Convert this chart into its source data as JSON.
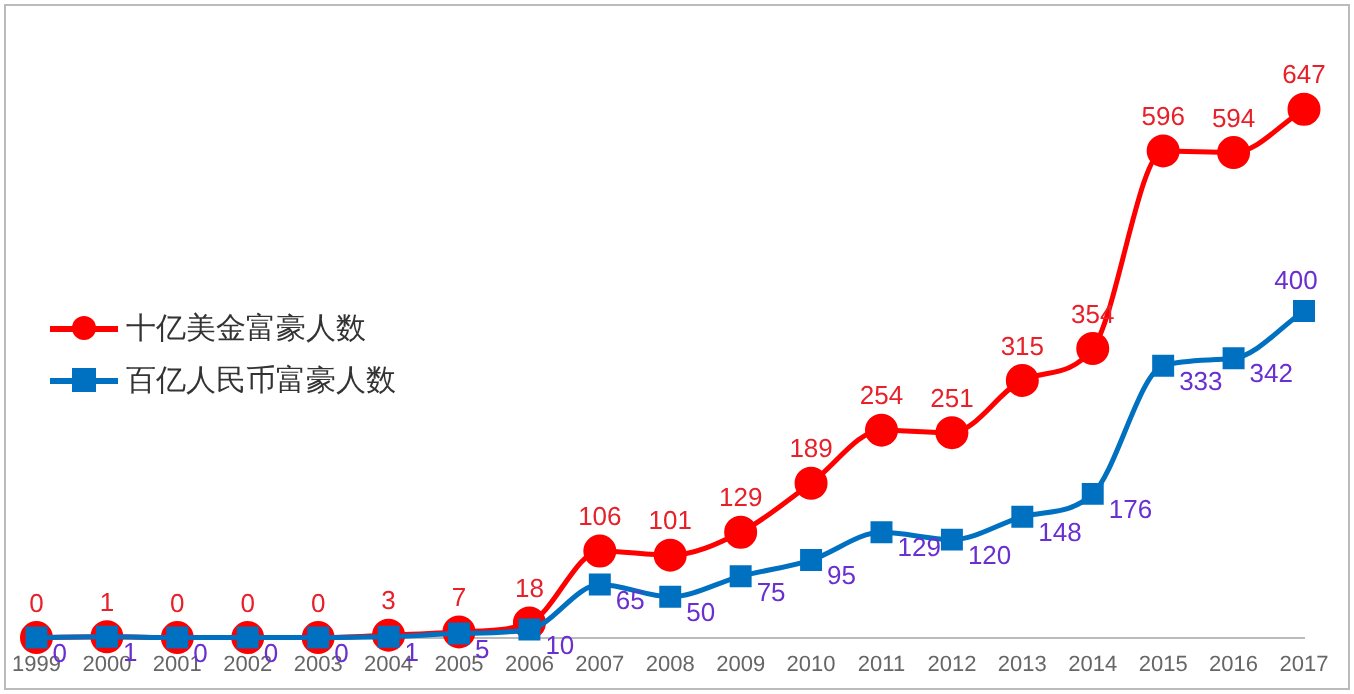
{
  "chart_data": {
    "type": "line",
    "categories": [
      "1999",
      "2000",
      "2001",
      "2002",
      "2003",
      "2004",
      "2005",
      "2006",
      "2007",
      "2008",
      "2009",
      "2010",
      "2011",
      "2012",
      "2013",
      "2014",
      "2015",
      "2016",
      "2017"
    ],
    "series": [
      {
        "name": "十亿美金富豪人数",
        "color": "#ff0000",
        "marker": "circle",
        "values": [
          0,
          1,
          0,
          0,
          0,
          3,
          7,
          18,
          106,
          101,
          129,
          189,
          254,
          251,
          315,
          354,
          596,
          594,
          647
        ]
      },
      {
        "name": "百亿人民币富豪人数",
        "color": "#0070c0",
        "marker": "square",
        "values": [
          0,
          1,
          0,
          0,
          0,
          1,
          5,
          10,
          65,
          50,
          75,
          95,
          129,
          120,
          148,
          176,
          333,
          342,
          400
        ]
      }
    ],
    "tick_labels": "x",
    "data_labels": true,
    "legend": "left",
    "grid": false
  }
}
